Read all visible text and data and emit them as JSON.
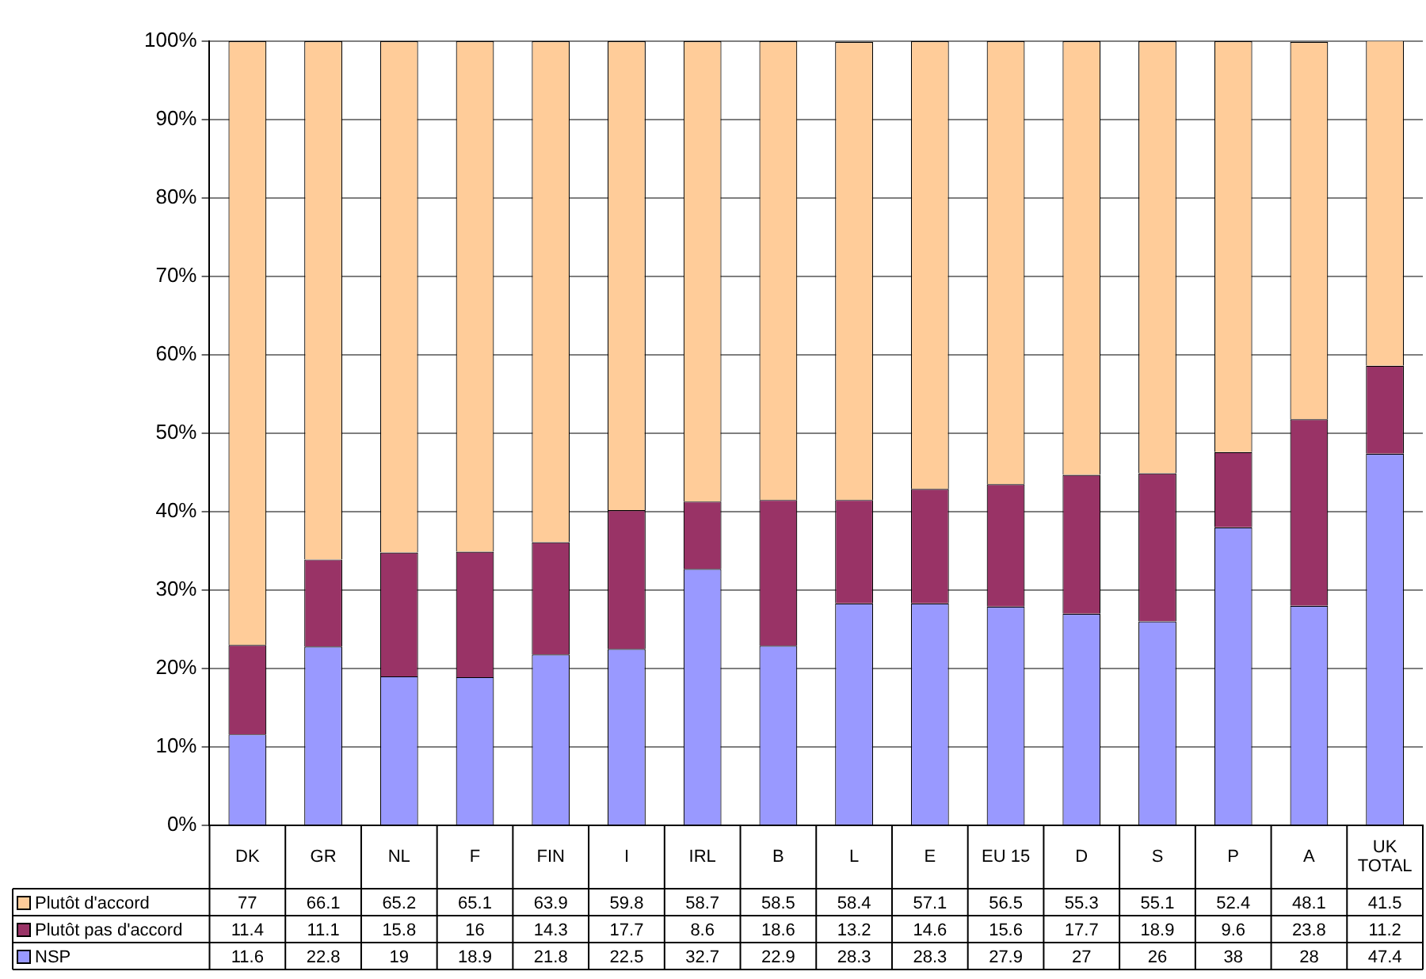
{
  "chart_data": {
    "type": "bar",
    "stacked": true,
    "categories": [
      "DK",
      "GR",
      "NL",
      "F",
      "FIN",
      "I",
      "IRL",
      "B",
      "L",
      "E",
      "EU 15",
      "D",
      "S",
      "P",
      "A",
      "UK TOTAL"
    ],
    "series": [
      {
        "name": "NSP",
        "color": "#9999ff",
        "values": [
          11.6,
          22.8,
          19,
          18.9,
          21.8,
          22.5,
          32.7,
          22.9,
          28.3,
          28.3,
          27.9,
          27,
          26,
          38,
          28,
          47.4
        ]
      },
      {
        "name": "Plutôt pas d'accord",
        "color": "#993366",
        "values": [
          11.4,
          11.1,
          15.8,
          16,
          14.3,
          17.7,
          8.6,
          18.6,
          13.2,
          14.6,
          15.6,
          17.7,
          18.9,
          9.6,
          23.8,
          11.2
        ]
      },
      {
        "name": "Plutôt d'accord",
        "color": "#ffcc99",
        "values": [
          77,
          66.1,
          65.2,
          65.1,
          63.9,
          59.8,
          58.7,
          58.5,
          58.4,
          57.1,
          56.5,
          55.3,
          55.1,
          52.4,
          48.1,
          41.5
        ]
      }
    ],
    "ylim": [
      0,
      100
    ],
    "yticks": [
      {
        "value": 0,
        "label": "0%"
      },
      {
        "value": 10,
        "label": "10%"
      },
      {
        "value": 20,
        "label": "20%"
      },
      {
        "value": 30,
        "label": "30%"
      },
      {
        "value": 40,
        "label": "40%"
      },
      {
        "value": 50,
        "label": "50%"
      },
      {
        "value": 60,
        "label": "60%"
      },
      {
        "value": 70,
        "label": "70%"
      },
      {
        "value": 80,
        "label": "80%"
      },
      {
        "value": 90,
        "label": "90%"
      },
      {
        "value": 100,
        "label": "100%"
      }
    ],
    "grid": "y",
    "legend": "bottom",
    "data_labels": true
  }
}
